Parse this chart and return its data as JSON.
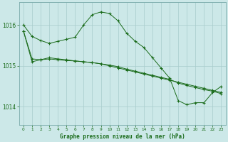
{
  "title": "Graphe pression niveau de la mer (hPa)",
  "background_color": "#cce8e8",
  "grid_color": "#a8cccc",
  "line_color": "#1a6b1a",
  "xlim": [
    -0.5,
    23.5
  ],
  "ylim": [
    1013.55,
    1016.55
  ],
  "yticks": [
    1014,
    1015,
    1016
  ],
  "xticks": [
    0,
    1,
    2,
    3,
    4,
    5,
    6,
    7,
    8,
    9,
    10,
    11,
    12,
    13,
    14,
    15,
    16,
    17,
    18,
    19,
    20,
    21,
    22,
    23
  ],
  "series": [
    [
      1016.0,
      1015.72,
      1015.62,
      1015.55,
      1015.6,
      1015.65,
      1015.7,
      1016.0,
      1016.25,
      1016.32,
      1016.28,
      1016.1,
      1015.8,
      1015.6,
      1015.45,
      1015.2,
      1014.95,
      1014.7,
      1014.15,
      1014.05,
      1014.1,
      1014.1,
      1014.35,
      1014.5
    ],
    [
      1015.85,
      1015.17,
      1015.15,
      1015.17,
      1015.15,
      1015.13,
      1015.12,
      1015.1,
      1015.08,
      1015.05,
      1015.02,
      1014.98,
      1014.92,
      1014.87,
      1014.82,
      1014.77,
      1014.72,
      1014.67,
      1014.58,
      1014.52,
      1014.47,
      1014.42,
      1014.38,
      1014.32
    ],
    [
      1015.85,
      1015.1,
      1015.15,
      1015.2,
      1015.17,
      1015.15,
      1015.12,
      1015.1,
      1015.08,
      1015.05,
      1015.0,
      1014.95,
      1014.9,
      1014.85,
      1014.8,
      1014.75,
      1014.7,
      1014.65,
      1014.6,
      1014.55,
      1014.5,
      1014.45,
      1014.4,
      1014.35
    ]
  ],
  "fig_width": 3.2,
  "fig_height": 2.0,
  "dpi": 100
}
